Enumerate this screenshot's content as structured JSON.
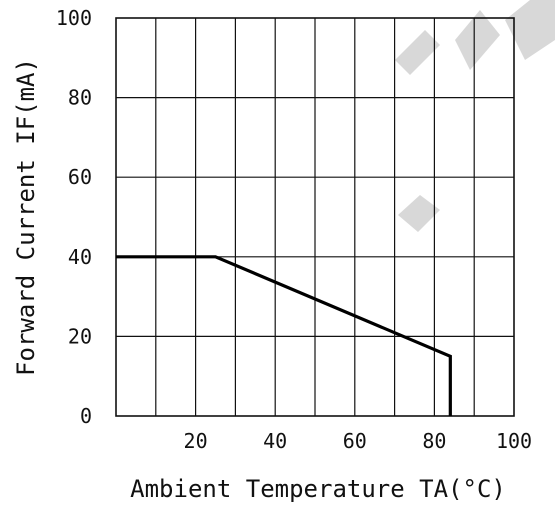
{
  "chart_data": {
    "type": "line",
    "title": "",
    "xlabel": "Ambient Temperature TA(°C)",
    "ylabel": "Forward Current IF(mA)",
    "xlim": [
      0,
      100
    ],
    "ylim": [
      0,
      100
    ],
    "x_ticks": [
      20,
      40,
      60,
      80,
      100
    ],
    "y_ticks": [
      0,
      20,
      40,
      60,
      80,
      100
    ],
    "x_tick_labels": [
      "20",
      "40",
      "60",
      "80",
      "100"
    ],
    "y_tick_labels": [
      "0",
      "20",
      "40",
      "60",
      "80",
      "100"
    ],
    "grid": true,
    "series": [
      {
        "x": [
          0,
          25,
          84,
          84
        ],
        "y": [
          40,
          40,
          15,
          0
        ],
        "color": "#000000"
      }
    ]
  }
}
